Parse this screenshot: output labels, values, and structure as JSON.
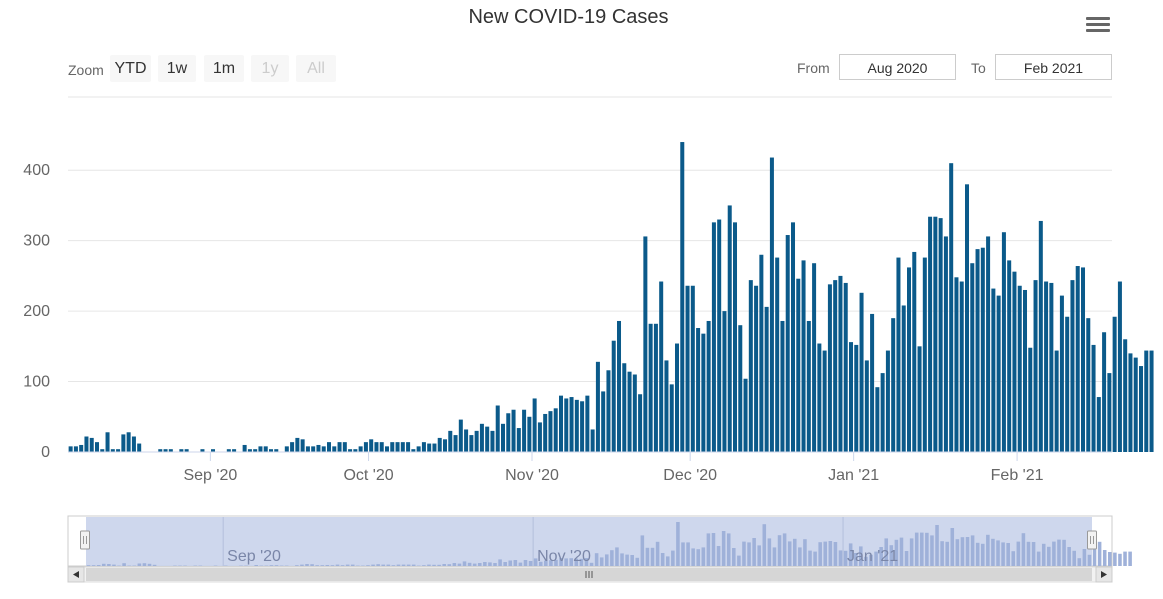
{
  "title": "New COVID-19 Cases",
  "range_selector": {
    "zoom_label": "Zoom",
    "buttons": [
      {
        "label": "YTD",
        "enabled": true
      },
      {
        "label": "1w",
        "enabled": true
      },
      {
        "label": "1m",
        "enabled": true
      },
      {
        "label": "1y",
        "enabled": false
      },
      {
        "label": "All",
        "enabled": false
      }
    ],
    "from_label": "From",
    "from_value": "Aug 2020",
    "to_label": "To",
    "to_value": "Feb 2021"
  },
  "colors": {
    "bar": "#0b5a8a",
    "navigator_fill": "#c5d0ea",
    "navigator_series": "#9fb1d9",
    "grid": "#e6e6e6"
  },
  "chart_data": {
    "type": "bar",
    "title": "New COVID-19 Cases",
    "x_start": "2020-08-05",
    "x_end": "2021-02-18",
    "ylim": [
      0,
      450
    ],
    "yticks": [
      0,
      100,
      200,
      300,
      400
    ],
    "x_ticks": [
      {
        "date": "2020-09-01",
        "label": "Sep '20"
      },
      {
        "date": "2020-10-01",
        "label": "Oct '20"
      },
      {
        "date": "2020-11-01",
        "label": "Nov '20"
      },
      {
        "date": "2020-12-01",
        "label": "Dec '20"
      },
      {
        "date": "2021-01-01",
        "label": "Jan '21"
      },
      {
        "date": "2021-02-01",
        "label": "Feb '21"
      }
    ],
    "grid": true,
    "legend": "none",
    "values": [
      8,
      8,
      10,
      22,
      20,
      14,
      4,
      28,
      4,
      4,
      25,
      28,
      22,
      12,
      0,
      0,
      0,
      4,
      4,
      4,
      0,
      4,
      4,
      0,
      0,
      4,
      0,
      4,
      0,
      0,
      4,
      4,
      0,
      10,
      4,
      4,
      8,
      8,
      4,
      4,
      0,
      8,
      14,
      20,
      18,
      8,
      8,
      10,
      8,
      14,
      8,
      14,
      14,
      4,
      4,
      8,
      14,
      18,
      14,
      14,
      8,
      14,
      14,
      14,
      14,
      4,
      8,
      14,
      12,
      12,
      20,
      18,
      30,
      24,
      46,
      32,
      24,
      30,
      40,
      36,
      30,
      66,
      40,
      55,
      60,
      34,
      60,
      50,
      76,
      42,
      54,
      58,
      62,
      80,
      76,
      78,
      74,
      72,
      80,
      32,
      128,
      86,
      116,
      158,
      186,
      126,
      114,
      110,
      82,
      306,
      182,
      182,
      242,
      130,
      96,
      154,
      440,
      236,
      236,
      176,
      168,
      186,
      326,
      330,
      200,
      350,
      326,
      180,
      104,
      244,
      236,
      280,
      206,
      418,
      276,
      186,
      308,
      326,
      246,
      272,
      186,
      268,
      154,
      144,
      238,
      244,
      250,
      240,
      156,
      152,
      226,
      130,
      196,
      92,
      112,
      144,
      190,
      276,
      208,
      262,
      284,
      150,
      276,
      334,
      334,
      332,
      306,
      410,
      248,
      242,
      380,
      268,
      288,
      290,
      306,
      232,
      222,
      312,
      272,
      256,
      236,
      230,
      148,
      244,
      328,
      242,
      240,
      144,
      222,
      192,
      244,
      264,
      262,
      190,
      152,
      78,
      170,
      112,
      192,
      242,
      160,
      140,
      134,
      122,
      144,
      144
    ]
  },
  "navigator": {
    "x_ticks": [
      "Sep '20",
      "Nov '20",
      "Jan '21"
    ]
  }
}
